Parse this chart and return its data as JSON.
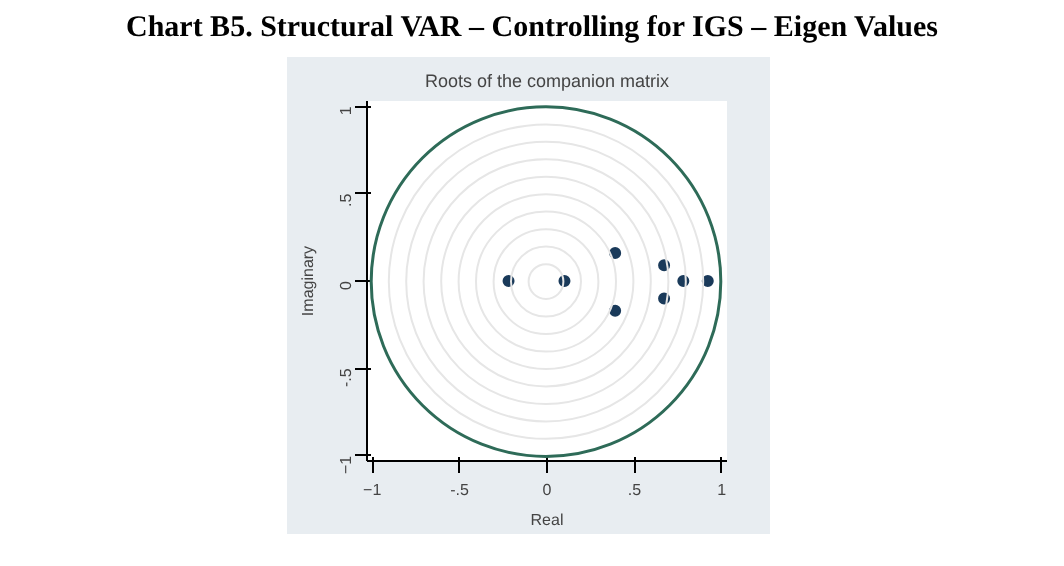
{
  "chart_data": {
    "type": "scatter",
    "title": "Chart B5. Structural VAR – Controlling for IGS – Eigen Values",
    "subtitle": "Roots of the companion matrix",
    "xlabel": "Real",
    "ylabel": "Imaginary",
    "x": [
      -0.22,
      0.1,
      0.39,
      0.39,
      0.67,
      0.67,
      0.78,
      0.92
    ],
    "series": [
      {
        "color": "#1a3a5a",
        "values": [
          0,
          0,
          0.16,
          -0.17,
          0.09,
          -0.1,
          0,
          0
        ]
      }
    ],
    "xlim": [
      -1.03,
      1.03
    ],
    "ylim": [
      -1.03,
      1.03
    ],
    "xticks": [
      -1,
      {
        "value": -0.5,
        "label": "-.5"
      },
      0,
      {
        "value": 0.5,
        "label": ".5"
      },
      1
    ],
    "yticks": [
      -1,
      {
        "value": -0.5,
        "label": "-.5"
      },
      0,
      {
        "value": 0.5,
        "label": ".5"
      },
      1
    ],
    "marker": "circle"
  }
}
